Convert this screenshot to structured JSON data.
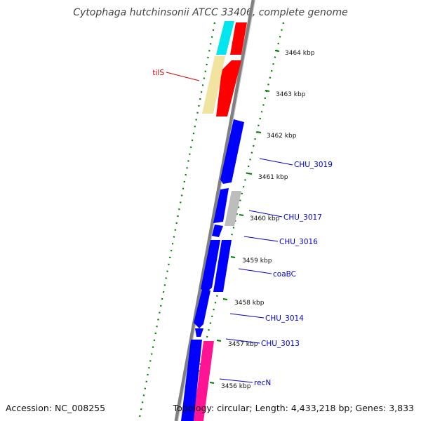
{
  "title": "Cytophaga hutchinsonii ATCC 33406, complete genome",
  "footer": {
    "accession": "Accession: NC_008255",
    "topology": "Topology: circular; Length: 4,433,218 bp; Genes: 3,833"
  },
  "colors": {
    "backbone": "#808080",
    "tick_marks": "#007a00",
    "forward_cds": "#0000ff",
    "trna": "#ff0000",
    "rrna_like": "#00e5ee",
    "misc_feature": "#f0e4a0",
    "pseudo_gray": "#bdbdbd",
    "magenta": "#ff1493",
    "label_blue": "#0000cc",
    "label_red": "#cc0000"
  },
  "ticks": [
    {
      "label": "3464 kbp"
    },
    {
      "label": "3463 kbp"
    },
    {
      "label": "3462 kbp"
    },
    {
      "label": "3461 kbp"
    },
    {
      "label": "3460 kbp"
    },
    {
      "label": "3459 kbp"
    },
    {
      "label": "3458 kbp"
    },
    {
      "label": "3457 kbp"
    },
    {
      "label": "3456 kbp"
    }
  ],
  "gene_labels": [
    {
      "name": "tilS",
      "color": "red"
    },
    {
      "name": "CHU_3019",
      "color": "blue"
    },
    {
      "name": "CHU_3017",
      "color": "blue"
    },
    {
      "name": "CHU_3016",
      "color": "blue"
    },
    {
      "name": "coaBC",
      "color": "blue"
    },
    {
      "name": "CHU_3014",
      "color": "blue"
    },
    {
      "name": "CHU_3013",
      "color": "blue"
    },
    {
      "name": "recN",
      "color": "blue"
    }
  ]
}
